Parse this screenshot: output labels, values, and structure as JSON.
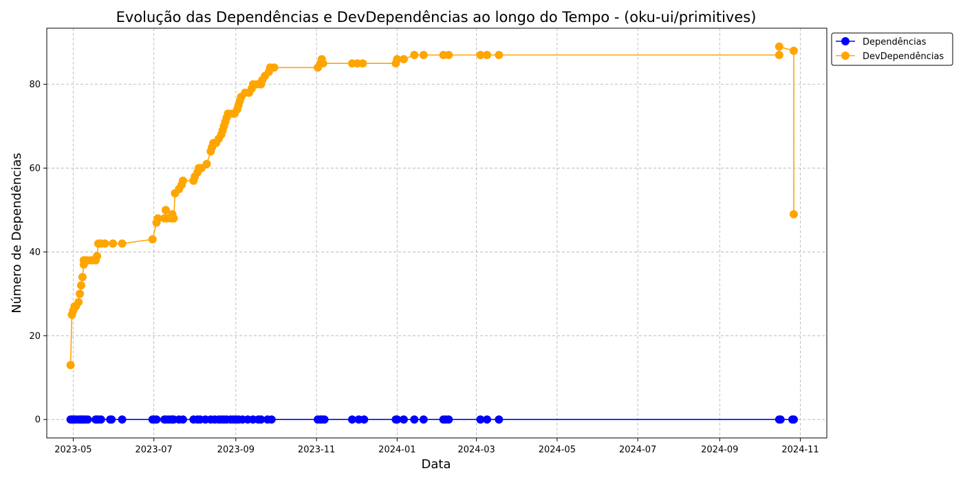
{
  "chart_data": {
    "type": "line",
    "title": "Evolução das Dependências e DevDependências ao longo do Tempo - (oku-ui/primitives)",
    "xlabel": "Data",
    "ylabel": "Número de Dependências",
    "x_ticks": [
      "2023-05",
      "2023-07",
      "2023-09",
      "2023-11",
      "2024-01",
      "2024-03",
      "2024-05",
      "2024-07",
      "2024-09",
      "2024-11"
    ],
    "y_ticks": [
      0,
      20,
      40,
      60,
      80
    ],
    "xlim": [
      "2023-04-11",
      "2024-11-21"
    ],
    "ylim": [
      -4.4,
      93.4
    ],
    "grid": true,
    "legend_position": "top-right, outside plot",
    "series": [
      {
        "name": "Dependências",
        "color": "#0000ff",
        "points": [
          [
            "2023-04-29",
            0
          ],
          [
            "2023-04-30",
            0
          ],
          [
            "2023-05-01",
            0
          ],
          [
            "2023-05-02",
            0
          ],
          [
            "2023-05-03",
            0
          ],
          [
            "2023-05-05",
            0
          ],
          [
            "2023-05-06",
            0
          ],
          [
            "2023-05-07",
            0
          ],
          [
            "2023-05-08",
            0
          ],
          [
            "2023-05-09",
            0
          ],
          [
            "2023-05-10",
            0
          ],
          [
            "2023-05-12",
            0
          ],
          [
            "2023-05-18",
            0
          ],
          [
            "2023-05-19",
            0
          ],
          [
            "2023-05-20",
            0
          ],
          [
            "2023-05-22",
            0
          ],
          [
            "2023-05-29",
            0
          ],
          [
            "2023-05-30",
            0
          ],
          [
            "2023-06-07",
            0
          ],
          [
            "2023-06-30",
            0
          ],
          [
            "2023-07-01",
            0
          ],
          [
            "2023-07-03",
            0
          ],
          [
            "2023-07-09",
            0
          ],
          [
            "2023-07-10",
            0
          ],
          [
            "2023-07-12",
            0
          ],
          [
            "2023-07-14",
            0
          ],
          [
            "2023-07-15",
            0
          ],
          [
            "2023-07-16",
            0
          ],
          [
            "2023-07-20",
            0
          ],
          [
            "2023-07-23",
            0
          ],
          [
            "2023-07-31",
            0
          ],
          [
            "2023-08-03",
            0
          ],
          [
            "2023-08-05",
            0
          ],
          [
            "2023-08-09",
            0
          ],
          [
            "2023-08-13",
            0
          ],
          [
            "2023-08-16",
            0
          ],
          [
            "2023-08-19",
            0
          ],
          [
            "2023-08-21",
            0
          ],
          [
            "2023-08-23",
            0
          ],
          [
            "2023-08-25",
            0
          ],
          [
            "2023-08-28",
            0
          ],
          [
            "2023-08-30",
            0
          ],
          [
            "2023-09-01",
            0
          ],
          [
            "2023-09-03",
            0
          ],
          [
            "2023-09-06",
            0
          ],
          [
            "2023-09-10",
            0
          ],
          [
            "2023-09-14",
            0
          ],
          [
            "2023-09-18",
            0
          ],
          [
            "2023-09-20",
            0
          ],
          [
            "2023-09-25",
            0
          ],
          [
            "2023-09-28",
            0
          ],
          [
            "2023-11-02",
            0
          ],
          [
            "2023-11-04",
            0
          ],
          [
            "2023-11-05",
            0
          ],
          [
            "2023-11-07",
            0
          ],
          [
            "2023-11-28",
            0
          ],
          [
            "2023-12-03",
            0
          ],
          [
            "2023-12-07",
            0
          ],
          [
            "2023-12-31",
            0
          ],
          [
            "2024-01-01",
            0
          ],
          [
            "2024-01-06",
            0
          ],
          [
            "2024-01-14",
            0
          ],
          [
            "2024-01-21",
            0
          ],
          [
            "2024-02-05",
            0
          ],
          [
            "2024-02-07",
            0
          ],
          [
            "2024-02-09",
            0
          ],
          [
            "2024-03-04",
            0
          ],
          [
            "2024-03-09",
            0
          ],
          [
            "2024-03-18",
            0
          ],
          [
            "2024-10-16",
            0
          ],
          [
            "2024-10-17",
            0
          ],
          [
            "2024-10-26",
            0
          ],
          [
            "2024-10-27",
            0
          ]
        ]
      },
      {
        "name": "DevDependências",
        "color": "#ffa500",
        "points": [
          [
            "2023-04-29",
            13
          ],
          [
            "2023-04-30",
            25
          ],
          [
            "2023-05-01",
            26
          ],
          [
            "2023-05-02",
            27
          ],
          [
            "2023-05-03",
            27
          ],
          [
            "2023-05-05",
            28
          ],
          [
            "2023-05-06",
            30
          ],
          [
            "2023-05-07",
            32
          ],
          [
            "2023-05-08",
            34
          ],
          [
            "2023-05-09",
            37
          ],
          [
            "2023-05-09",
            38
          ],
          [
            "2023-05-10",
            38
          ],
          [
            "2023-05-12",
            38
          ],
          [
            "2023-05-15",
            38
          ],
          [
            "2023-05-18",
            38
          ],
          [
            "2023-05-19",
            39
          ],
          [
            "2023-05-20",
            42
          ],
          [
            "2023-05-22",
            42
          ],
          [
            "2023-05-25",
            42
          ],
          [
            "2023-05-31",
            42
          ],
          [
            "2023-06-07",
            42
          ],
          [
            "2023-06-30",
            43
          ],
          [
            "2023-07-03",
            47
          ],
          [
            "2023-07-04",
            48
          ],
          [
            "2023-07-09",
            48
          ],
          [
            "2023-07-10",
            50
          ],
          [
            "2023-07-11",
            48
          ],
          [
            "2023-07-14",
            48
          ],
          [
            "2023-07-15",
            49
          ],
          [
            "2023-07-16",
            48
          ],
          [
            "2023-07-17",
            54
          ],
          [
            "2023-07-20",
            55
          ],
          [
            "2023-07-22",
            56
          ],
          [
            "2023-07-23",
            57
          ],
          [
            "2023-07-31",
            57
          ],
          [
            "2023-08-01",
            58
          ],
          [
            "2023-08-03",
            59
          ],
          [
            "2023-08-04",
            60
          ],
          [
            "2023-08-06",
            60
          ],
          [
            "2023-08-10",
            61
          ],
          [
            "2023-08-13",
            64
          ],
          [
            "2023-08-14",
            65
          ],
          [
            "2023-08-15",
            66
          ],
          [
            "2023-08-17",
            66
          ],
          [
            "2023-08-19",
            67
          ],
          [
            "2023-08-21",
            68
          ],
          [
            "2023-08-22",
            69
          ],
          [
            "2023-08-23",
            70
          ],
          [
            "2023-08-24",
            71
          ],
          [
            "2023-08-25",
            72
          ],
          [
            "2023-08-26",
            73
          ],
          [
            "2023-08-29",
            73
          ],
          [
            "2023-08-31",
            73
          ],
          [
            "2023-09-02",
            74
          ],
          [
            "2023-09-03",
            75
          ],
          [
            "2023-09-04",
            76
          ],
          [
            "2023-09-05",
            77
          ],
          [
            "2023-09-08",
            78
          ],
          [
            "2023-09-11",
            78
          ],
          [
            "2023-09-13",
            79
          ],
          [
            "2023-09-14",
            80
          ],
          [
            "2023-09-17",
            80
          ],
          [
            "2023-09-20",
            80
          ],
          [
            "2023-09-21",
            81
          ],
          [
            "2023-09-23",
            82
          ],
          [
            "2023-09-26",
            83
          ],
          [
            "2023-09-27",
            84
          ],
          [
            "2023-09-30",
            84
          ],
          [
            "2023-11-02",
            84
          ],
          [
            "2023-11-04",
            85
          ],
          [
            "2023-11-05",
            86
          ],
          [
            "2023-11-06",
            85
          ],
          [
            "2023-11-28",
            85
          ],
          [
            "2023-12-02",
            85
          ],
          [
            "2023-12-06",
            85
          ],
          [
            "2023-12-31",
            85
          ],
          [
            "2024-01-01",
            86
          ],
          [
            "2024-01-06",
            86
          ],
          [
            "2024-01-14",
            87
          ],
          [
            "2024-01-21",
            87
          ],
          [
            "2024-02-05",
            87
          ],
          [
            "2024-02-09",
            87
          ],
          [
            "2024-03-04",
            87
          ],
          [
            "2024-03-09",
            87
          ],
          [
            "2024-03-18",
            87
          ],
          [
            "2024-10-16",
            87
          ],
          [
            "2024-10-16",
            89
          ],
          [
            "2024-10-27",
            88
          ],
          [
            "2024-10-27",
            49
          ]
        ]
      }
    ]
  }
}
